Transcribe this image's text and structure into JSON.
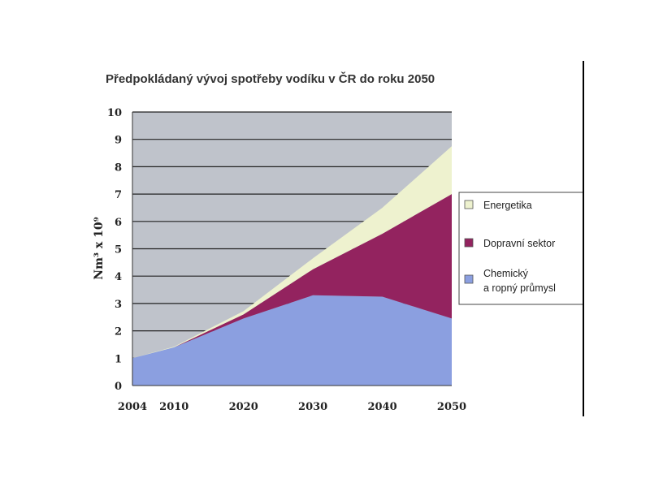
{
  "chart_data": {
    "type": "area",
    "stacked": true,
    "title": "Předpokládaný vývoj spotřeby vodíku v ČR do roku 2050",
    "ylabel": "Nm³ x 10⁹",
    "xlabel": "",
    "x": [
      2004,
      2010,
      2020,
      2030,
      2040,
      2050
    ],
    "x_tick_labels": [
      "2004",
      "2010",
      "2020",
      "2030",
      "2040",
      "2050"
    ],
    "y_tick_labels": [
      "0",
      "1",
      "2",
      "3",
      "4",
      "5",
      "6",
      "7",
      "8",
      "9",
      "10"
    ],
    "ylim": [
      0,
      10
    ],
    "grid": true,
    "legend_position": "right",
    "series": [
      {
        "name": "Chemický a ropný průmysl",
        "legend_lines": [
          "Chemický",
          "a ropný průmysl"
        ],
        "color": "#8b9fe0",
        "values": [
          1.0,
          1.4,
          2.45,
          3.3,
          3.25,
          2.45
        ]
      },
      {
        "name": "Dopravní sektor",
        "legend_lines": [
          "Dopravní sektor"
        ],
        "color": "#93235f",
        "values": [
          0.0,
          0.0,
          0.15,
          0.95,
          2.3,
          4.55
        ]
      },
      {
        "name": "Energetika",
        "legend_lines": [
          "Energetika"
        ],
        "color": "#eef2cf",
        "values": [
          0.0,
          0.02,
          0.12,
          0.4,
          0.95,
          1.75
        ]
      }
    ],
    "legend_order": [
      2,
      1,
      0
    ],
    "colors": {
      "plot_background": "#bfc3cb",
      "grid": "#222222"
    }
  }
}
